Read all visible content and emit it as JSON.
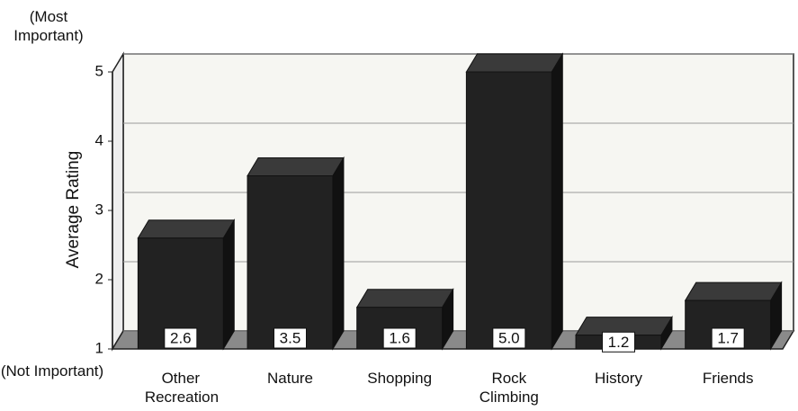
{
  "chart_data": {
    "type": "bar3d",
    "y_label": "Average Rating",
    "top_annotation": "(Most Important)",
    "bottom_annotation": "(Not Important)",
    "categories": [
      "Other Recreation",
      "Nature",
      "Shopping",
      "Rock Climbing",
      "History",
      "Friends"
    ],
    "values": [
      2.6,
      3.5,
      1.6,
      5.0,
      1.2,
      1.7
    ],
    "value_labels": [
      "2.6",
      "3.5",
      "1.6",
      "5.0",
      "1.2",
      "1.7"
    ],
    "color": "#222222",
    "ylim": [
      1,
      5
    ],
    "yticks": [
      1,
      2,
      3,
      4,
      5
    ],
    "grid": true
  }
}
